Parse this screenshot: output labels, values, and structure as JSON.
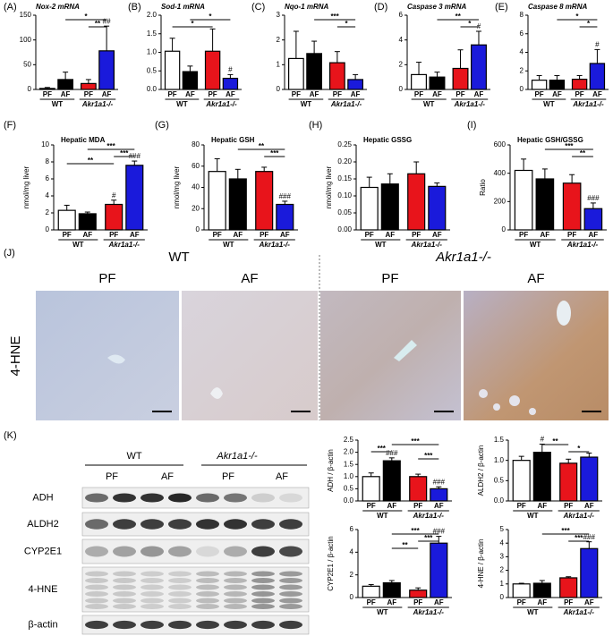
{
  "chart_data": [
    {
      "type": "bar",
      "panel": "(A)",
      "title": "Nox-2 mRNA",
      "categories": [
        "PF",
        "AF",
        "PF",
        "AF"
      ],
      "groups": [
        "WT",
        "Akr1a1-/-"
      ],
      "values": [
        2,
        20,
        12,
        78
      ],
      "errors": [
        2,
        15,
        8,
        50
      ],
      "colors": [
        "#ffffff",
        "#000000",
        "#e8141b",
        "#1a1adb"
      ],
      "ylim": [
        0,
        150
      ],
      "yticks": [
        0,
        50,
        100,
        150
      ],
      "annotations": [
        "*",
        "**",
        "##"
      ]
    },
    {
      "type": "bar",
      "panel": "(B)",
      "title": "Sod-1 mRNA",
      "categories": [
        "PF",
        "AF",
        "PF",
        "AF"
      ],
      "groups": [
        "WT",
        "Akr1a1-/-"
      ],
      "values": [
        1.03,
        0.48,
        1.03,
        0.3
      ],
      "errors": [
        0.35,
        0.15,
        0.6,
        0.1
      ],
      "colors": [
        "#ffffff",
        "#000000",
        "#e8141b",
        "#1a1adb"
      ],
      "ylim": [
        0,
        2
      ],
      "yticks": [
        {
          "value": 0,
          "label": "0.0"
        },
        0.5,
        {
          "value": 1,
          "label": "1.0"
        },
        1.5,
        {
          "value": 2,
          "label": "2.0"
        }
      ],
      "annotations": [
        "*",
        "*",
        "#"
      ]
    },
    {
      "type": "bar",
      "panel": "(C)",
      "title": "Nqo-1 mRNA",
      "categories": [
        "PF",
        "AF",
        "PF",
        "AF"
      ],
      "groups": [
        "WT",
        "Akr1a1-/-"
      ],
      "values": [
        1.25,
        1.45,
        1.08,
        0.4
      ],
      "errors": [
        1.1,
        0.5,
        0.45,
        0.2
      ],
      "colors": [
        "#ffffff",
        "#000000",
        "#e8141b",
        "#1a1adb"
      ],
      "ylim": [
        0,
        3
      ],
      "yticks": [
        0,
        1,
        2,
        3
      ],
      "annotations": [
        "***",
        "*"
      ]
    },
    {
      "type": "bar",
      "panel": "(D)",
      "title": "Caspase 3 mRNA",
      "categories": [
        "PF",
        "AF",
        "PF",
        "AF"
      ],
      "groups": [
        "WT",
        "Akr1a1-/-"
      ],
      "values": [
        1.2,
        1.0,
        1.7,
        3.6
      ],
      "errors": [
        1.0,
        0.4,
        1.5,
        1.1
      ],
      "colors": [
        "#ffffff",
        "#000000",
        "#e8141b",
        "#1a1adb"
      ],
      "ylim": [
        0,
        6
      ],
      "yticks": [
        0,
        2,
        4,
        6
      ],
      "annotations": [
        "**",
        "*",
        "#"
      ]
    },
    {
      "type": "bar",
      "panel": "(E)",
      "title": "Caspase 8 mRNA",
      "categories": [
        "PF",
        "AF",
        "PF",
        "AF"
      ],
      "groups": [
        "WT",
        "Akr1a1-/-"
      ],
      "values": [
        1.0,
        1.0,
        1.1,
        2.8
      ],
      "errors": [
        0.5,
        0.5,
        0.4,
        1.5
      ],
      "colors": [
        "#ffffff",
        "#000000",
        "#e8141b",
        "#1a1adb"
      ],
      "ylim": [
        0,
        8
      ],
      "yticks": [
        0,
        2,
        4,
        6,
        8
      ],
      "annotations": [
        "*",
        "*",
        "#"
      ]
    },
    {
      "type": "bar",
      "panel": "(F)",
      "title": "Hepatic MDA",
      "y_label": "nmol/mg liver",
      "categories": [
        "PF",
        "AF",
        "PF",
        "AF"
      ],
      "groups": [
        "WT",
        "Akr1a1-/-"
      ],
      "values": [
        2.3,
        1.9,
        3.0,
        7.6
      ],
      "errors": [
        0.6,
        0.2,
        0.5,
        0.5
      ],
      "colors": [
        "#ffffff",
        "#000000",
        "#e8141b",
        "#1a1adb"
      ],
      "ylim": [
        0,
        10
      ],
      "yticks": [
        0,
        2,
        4,
        6,
        8,
        10
      ],
      "annotations": [
        "***",
        "***",
        "**",
        "#",
        "###"
      ]
    },
    {
      "type": "bar",
      "panel": "(G)",
      "title": "Hepatic GSH",
      "y_label": "nmol/mg liver",
      "categories": [
        "PF",
        "AF",
        "PF",
        "AF"
      ],
      "groups": [
        "WT",
        "Akr1a1-/-"
      ],
      "values": [
        55,
        48,
        55,
        24
      ],
      "errors": [
        12,
        9,
        4,
        3
      ],
      "colors": [
        "#ffffff",
        "#000000",
        "#e8141b",
        "#1a1adb"
      ],
      "ylim": [
        0,
        80
      ],
      "yticks": [
        0,
        20,
        40,
        60,
        80
      ],
      "annotations": [
        "**",
        "***",
        "###"
      ]
    },
    {
      "type": "bar",
      "panel": "(H)",
      "title": "Hepatic GSSG",
      "y_label": "nmol/mg liver",
      "categories": [
        "PF",
        "AF",
        "PF",
        "AF"
      ],
      "groups": [
        "WT",
        "Akr1a1-/-"
      ],
      "values": [
        0.125,
        0.135,
        0.165,
        0.128
      ],
      "errors": [
        0.03,
        0.03,
        0.035,
        0.01
      ],
      "colors": [
        "#ffffff",
        "#000000",
        "#e8141b",
        "#1a1adb"
      ],
      "ylim": [
        0,
        0.25
      ],
      "yticks": [
        {
          "value": 0,
          "label": "0.00"
        },
        0.05,
        {
          "value": 0.1,
          "label": "0.10"
        },
        0.15,
        {
          "value": 0.2,
          "label": "0.20"
        },
        0.25
      ],
      "annotations": []
    },
    {
      "type": "bar",
      "panel": "(I)",
      "title": "Hepatic GSH/GSSG",
      "y_label": "Ratio",
      "categories": [
        "PF",
        "AF",
        "PF",
        "AF"
      ],
      "groups": [
        "WT",
        "Akr1a1-/-"
      ],
      "values": [
        420,
        360,
        330,
        150
      ],
      "errors": [
        80,
        70,
        60,
        40
      ],
      "colors": [
        "#ffffff",
        "#000000",
        "#e8141b",
        "#1a1adb"
      ],
      "ylim": [
        0,
        600
      ],
      "yticks": [
        0,
        200,
        400,
        600
      ],
      "annotations": [
        "***",
        "**",
        "###"
      ]
    },
    {
      "type": "bar",
      "y_label": "ADH / β-actin",
      "categories": [
        "PF",
        "AF",
        "PF",
        "AF"
      ],
      "groups": [
        "WT",
        "Akr1a1-/-"
      ],
      "values": [
        1.0,
        1.65,
        1.0,
        0.5
      ],
      "errors": [
        0.15,
        0.12,
        0.1,
        0.08
      ],
      "colors": [
        "#ffffff",
        "#000000",
        "#e8141b",
        "#1a1adb"
      ],
      "ylim": [
        0,
        2.5
      ],
      "yticks": [
        {
          "value": 0,
          "label": "0.0"
        },
        0.5,
        {
          "value": 1,
          "label": "1.0"
        },
        1.5,
        {
          "value": 2,
          "label": "2.0"
        },
        2.5
      ],
      "annotations": [
        "***",
        "***",
        "***",
        "###",
        "###"
      ]
    },
    {
      "type": "bar",
      "y_label": "ALDH2 / β-actin",
      "categories": [
        "PF",
        "AF",
        "PF",
        "AF"
      ],
      "groups": [
        "WT",
        "Akr1a1-/-"
      ],
      "values": [
        1.0,
        1.2,
        0.93,
        1.08
      ],
      "errors": [
        0.1,
        0.2,
        0.1,
        0.1
      ],
      "colors": [
        "#ffffff",
        "#000000",
        "#e8141b",
        "#1a1adb"
      ],
      "ylim": [
        0,
        1.5
      ],
      "yticks": [
        {
          "value": 0,
          "label": "0.0"
        },
        0.5,
        {
          "value": 1,
          "label": "1.0"
        },
        1.5
      ],
      "annotations": [
        "**",
        "*",
        "#"
      ]
    },
    {
      "type": "bar",
      "y_label": "CYP2E1 / β-actin",
      "categories": [
        "PF",
        "AF",
        "PF",
        "AF"
      ],
      "groups": [
        "WT",
        "Akr1a1-/-"
      ],
      "values": [
        1.0,
        1.3,
        0.65,
        4.8
      ],
      "errors": [
        0.15,
        0.2,
        0.2,
        0.6
      ],
      "colors": [
        "#ffffff",
        "#000000",
        "#e8141b",
        "#1a1adb"
      ],
      "ylim": [
        0,
        6
      ],
      "yticks": [
        0,
        2,
        4,
        6
      ],
      "annotations": [
        "***",
        "***",
        "**",
        "###"
      ]
    },
    {
      "type": "bar",
      "y_label": "4-HNE / β-actin",
      "categories": [
        "PF",
        "AF",
        "PF",
        "AF"
      ],
      "groups": [
        "WT",
        "Akr1a1-/-"
      ],
      "values": [
        1.0,
        1.05,
        1.45,
        3.6
      ],
      "errors": [
        0.05,
        0.2,
        0.08,
        0.5
      ],
      "colors": [
        "#ffffff",
        "#000000",
        "#e8141b",
        "#1a1adb"
      ],
      "ylim": [
        0,
        5
      ],
      "yticks": [
        0,
        1,
        2,
        3,
        4,
        5
      ],
      "annotations": [
        "***",
        "***",
        "###"
      ]
    }
  ],
  "histology": {
    "panel": "(J)",
    "groups": [
      "WT",
      "Akr1a1-/-"
    ],
    "columns": [
      "PF",
      "AF",
      "PF",
      "AF"
    ],
    "row_label": "4-HNE"
  },
  "blot": {
    "panel": "(K)",
    "groups": [
      "WT",
      "Akr1a1-/-"
    ],
    "columns": [
      "PF",
      "AF",
      "PF",
      "AF"
    ],
    "rows": [
      "ADH",
      "ALDH2",
      "CYP2E1",
      "4-HNE",
      "β-actin"
    ]
  }
}
